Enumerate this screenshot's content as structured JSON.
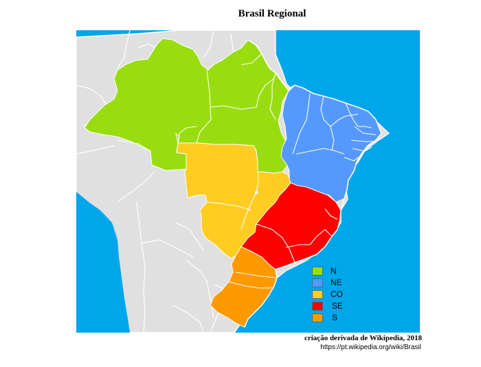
{
  "title": "Brasil Regional",
  "colors": {
    "ocean": "#00a6ea",
    "land": "#e0e0e0",
    "border": "#ffffff"
  },
  "regions": [
    {
      "code": "N",
      "color": "#99dd11"
    },
    {
      "code": "NE",
      "color": "#5599ff"
    },
    {
      "code": "CO",
      "color": "#ffcc22"
    },
    {
      "code": "SE",
      "color": "#ff0000"
    },
    {
      "code": "S",
      "color": "#ff9900"
    }
  ],
  "credit": "criação derivada de Wikipedia, 2018",
  "source_url": "https://pt.wikipedia.org/wiki/Brasil"
}
